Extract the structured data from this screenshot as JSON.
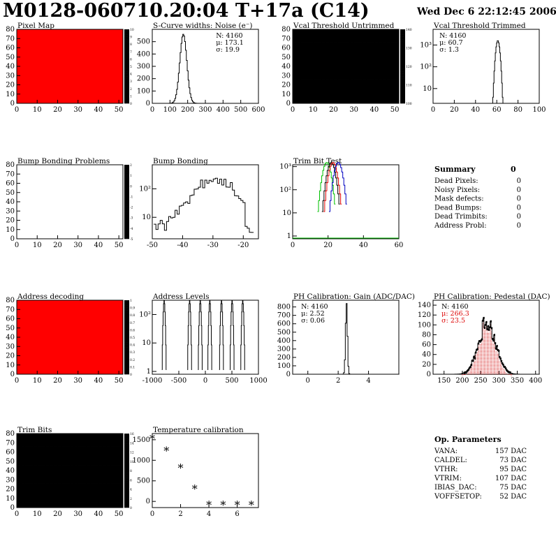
{
  "header": {
    "title": "M0128-060710.20:04 T+17a (C14)",
    "date": "Wed Dec  6 22:12:45 2006"
  },
  "summary": {
    "title": "Summary",
    "total": "0",
    "rows": [
      {
        "label": "Dead Pixels:",
        "value": "0"
      },
      {
        "label": "Noisy Pixels:",
        "value": "0"
      },
      {
        "label": "Mask defects:",
        "value": "0"
      },
      {
        "label": "Dead Bumps:",
        "value": "0"
      },
      {
        "label": "Dead Trimbits:",
        "value": "0"
      },
      {
        "label": "Address Probl:",
        "value": "0"
      }
    ]
  },
  "op_params": {
    "title": "Op. Parameters",
    "rows": [
      {
        "label": "VANA:",
        "value": "157 DAC"
      },
      {
        "label": "CALDEL:",
        "value": "73 DAC"
      },
      {
        "label": "VTHR:",
        "value": "95 DAC"
      },
      {
        "label": "VTRIM:",
        "value": "107 DAC"
      },
      {
        "label": "IBIAS_DAC:",
        "value": "75 DAC"
      },
      {
        "label": "VOFFSETOP:",
        "value": "52 DAC"
      }
    ]
  },
  "chart_data": [
    {
      "id": "pixel-map",
      "type": "heatmap",
      "title": "Pixel Map",
      "x_ticks": [
        "0",
        "10",
        "20",
        "30",
        "40",
        "50"
      ],
      "y_ticks": [
        "0",
        "10",
        "20",
        "30",
        "40",
        "50",
        "60",
        "70",
        "80"
      ],
      "xlim": [
        0,
        52
      ],
      "ylim": [
        0,
        80
      ],
      "fill": "uniform",
      "fill_color": "#ff0000",
      "z_ticks": [
        "0",
        "1",
        "2",
        "3",
        "4",
        "5",
        "6",
        "7",
        "8",
        "9",
        "10"
      ]
    },
    {
      "id": "scurve-widths",
      "type": "histogram",
      "title": "S-Curve widths: Noise (e⁻)",
      "x_ticks": [
        "0",
        "100",
        "200",
        "300",
        "400",
        "500",
        "600"
      ],
      "y_ticks": [
        "0",
        "100",
        "200",
        "300",
        "400",
        "500"
      ],
      "xlim": [
        0,
        600
      ],
      "ylim": [
        0,
        600
      ],
      "stats": [
        "N: 4160",
        "μ: 173.1",
        "σ: 19.9"
      ],
      "peak": {
        "mean": 173.1,
        "sigma": 19.9,
        "height": 560
      }
    },
    {
      "id": "vcal-untrimmed",
      "type": "heatmap",
      "title": "Vcal Threshold Untrimmed",
      "x_ticks": [
        "0",
        "10",
        "20",
        "30",
        "40",
        "50"
      ],
      "y_ticks": [
        "0",
        "10",
        "20",
        "30",
        "40",
        "50",
        "60",
        "70",
        "80"
      ],
      "xlim": [
        0,
        52
      ],
      "ylim": [
        0,
        80
      ],
      "z_ticks": [
        "100",
        "110",
        "120",
        "130",
        "140"
      ]
    },
    {
      "id": "vcal-trimmed",
      "type": "histogram",
      "title": "Vcal Threshold Trimmed",
      "x_ticks": [
        "0",
        "20",
        "40",
        "60",
        "80",
        "100"
      ],
      "y_ticks": [
        "10",
        "10²",
        "10³"
      ],
      "xlim": [
        0,
        100
      ],
      "log_y": true,
      "stats": [
        "N: 4160",
        "μ: 60.7",
        "σ:  1.3"
      ],
      "peak": {
        "mean": 60.7,
        "sigma": 1.3,
        "height": 1600
      }
    },
    {
      "id": "bump-bonding-problems",
      "type": "heatmap",
      "title": "Bump Bonding Problems",
      "x_ticks": [
        "0",
        "10",
        "20",
        "30",
        "40",
        "50"
      ],
      "y_ticks": [
        "0",
        "10",
        "20",
        "30",
        "40",
        "50",
        "60",
        "70",
        "80"
      ],
      "xlim": [
        0,
        52
      ],
      "ylim": [
        0,
        80
      ],
      "fill": "empty",
      "z_ticks": [
        "-5",
        "-4",
        "-3",
        "-2",
        "-1",
        "0",
        "1",
        "2"
      ]
    },
    {
      "id": "bump-bonding",
      "type": "histogram",
      "title": "Bump Bonding",
      "x_ticks": [
        "-50",
        "-40",
        "-30",
        "-20"
      ],
      "y_ticks": [
        "10",
        "10²"
      ],
      "xlim": [
        -50,
        -15
      ],
      "log_y": true
    },
    {
      "id": "trim-bit-test",
      "type": "histogram",
      "title": "Trim Bit Test",
      "x_ticks": [
        "0",
        "20",
        "40",
        "60"
      ],
      "y_ticks": [
        "1",
        "10",
        "10²",
        "10³"
      ],
      "xlim": [
        0,
        60
      ],
      "log_y": true,
      "series": [
        {
          "name": "green",
          "color": "#00c000"
        },
        {
          "name": "black",
          "color": "#000000"
        },
        {
          "name": "red",
          "color": "#e00000"
        },
        {
          "name": "blue",
          "color": "#0000c0"
        }
      ]
    },
    {
      "id": "address-decoding",
      "type": "heatmap",
      "title": "Address decoding",
      "x_ticks": [
        "0",
        "10",
        "20",
        "30",
        "40",
        "50"
      ],
      "y_ticks": [
        "0",
        "10",
        "20",
        "30",
        "40",
        "50",
        "60",
        "70",
        "80"
      ],
      "xlim": [
        0,
        52
      ],
      "ylim": [
        0,
        80
      ],
      "fill": "uniform",
      "fill_color": "#ff0000",
      "z_ticks": [
        "0",
        "0.1",
        "0.2",
        "0.3",
        "0.4",
        "0.5",
        "0.6",
        "0.7",
        "0.8",
        "0.9",
        "1"
      ]
    },
    {
      "id": "address-levels",
      "type": "histogram",
      "title": "Address Levels",
      "x_ticks": [
        "-1000",
        "-500",
        "0",
        "500",
        "1000"
      ],
      "y_ticks": [
        "1",
        "10",
        "10²"
      ],
      "xlim": [
        -1000,
        1000
      ],
      "log_y": true,
      "peaks": [
        -780,
        -300,
        -100,
        80,
        300,
        500,
        700
      ]
    },
    {
      "id": "ph-gain",
      "type": "histogram",
      "title": "PH Calibration: Gain (ADC/DAC)",
      "x_ticks": [
        "0",
        "2",
        "4"
      ],
      "y_ticks": [
        "0",
        "100",
        "200",
        "300",
        "400",
        "500",
        "600",
        "700",
        "800"
      ],
      "xlim": [
        -1,
        6
      ],
      "ylim": [
        0,
        880
      ],
      "stats": [
        "N: 4160",
        "μ: 2.52",
        "σ: 0.06"
      ],
      "peak": {
        "mean": 2.52,
        "sigma": 0.06,
        "height": 850
      }
    },
    {
      "id": "ph-pedestal",
      "type": "histogram",
      "title": "PH Calibration: Pedestal (DAC)",
      "x_ticks": [
        "150",
        "200",
        "250",
        "300",
        "350",
        "400"
      ],
      "y_ticks": [
        "0",
        "20",
        "40",
        "60",
        "80",
        "100",
        "120",
        "140"
      ],
      "xlim": [
        120,
        410
      ],
      "ylim": [
        0,
        150
      ],
      "stats": [
        "N: 4160",
        "μ: 266.3",
        "σ: 23.5"
      ],
      "stats_colors": [
        "#000000",
        "#dd0000",
        "#dd0000"
      ],
      "peak": {
        "mean": 266.3,
        "sigma": 23.5,
        "height": 100
      }
    },
    {
      "id": "trim-bits",
      "type": "heatmap",
      "title": "Trim Bits",
      "x_ticks": [
        "0",
        "10",
        "20",
        "30",
        "40",
        "50"
      ],
      "y_ticks": [
        "0",
        "10",
        "20",
        "30",
        "40",
        "50",
        "60",
        "70",
        "80"
      ],
      "xlim": [
        0,
        52
      ],
      "ylim": [
        0,
        80
      ],
      "z_ticks": [
        "0",
        "2",
        "4",
        "6",
        "8",
        "10",
        "12",
        "14",
        "16"
      ]
    },
    {
      "id": "temperature-calibration",
      "type": "scatter",
      "title": "Temperature calibration",
      "x_ticks": [
        "0",
        "2",
        "4",
        "6"
      ],
      "y_ticks": [
        "0",
        "500",
        "1000",
        "1500"
      ],
      "xlim": [
        0,
        7.5
      ],
      "ylim": [
        -150,
        1650
      ],
      "x": [
        0,
        1,
        2,
        3,
        4,
        5,
        6,
        7
      ],
      "y": [
        1530,
        1230,
        820,
        310,
        -80,
        -80,
        -80,
        -80
      ]
    }
  ]
}
